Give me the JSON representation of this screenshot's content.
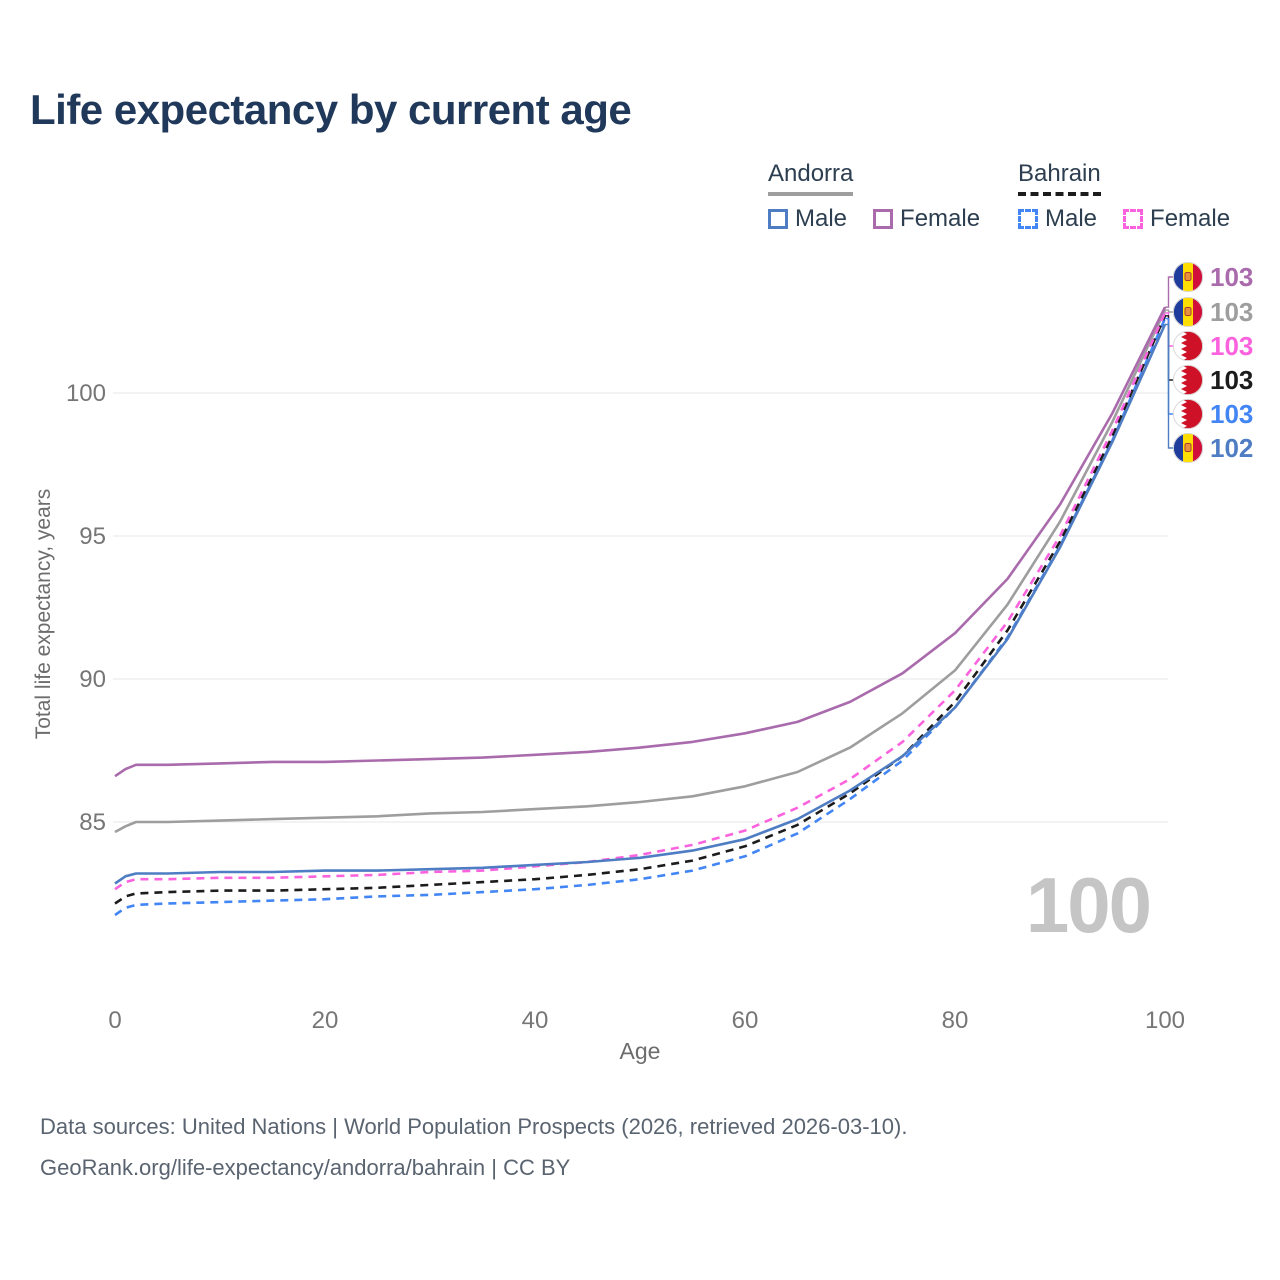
{
  "title": "Life expectancy by current age",
  "watermark": "100",
  "legend": {
    "groups": [
      {
        "name": "Andorra",
        "line": {
          "color": "#9e9e9e",
          "dash": "solid"
        },
        "items": [
          {
            "label": "Male",
            "color": "#4f7dc3",
            "dash": "solid"
          },
          {
            "label": "Female",
            "color": "#a96bac",
            "dash": "solid"
          }
        ]
      },
      {
        "name": "Bahrain",
        "line": {
          "color": "#1c1c1c",
          "dash": "dashed"
        },
        "items": [
          {
            "label": "Male",
            "color": "#4285f4",
            "dash": "dashed"
          },
          {
            "label": "Female",
            "color": "#fb63de",
            "dash": "dashed"
          }
        ]
      }
    ]
  },
  "footer": {
    "line1": "Data sources: United Nations | World Population Prospects (2026, retrieved 2026-03-10).",
    "line2": "GeoRank.org/life-expectancy/andorra/bahrain | CC BY"
  },
  "chart_data": {
    "type": "line",
    "title": "Life expectancy by current age",
    "xlabel": "Age",
    "ylabel": "Total life expectancy, years",
    "xlim": [
      0,
      100
    ],
    "ylim": [
      81.5,
      103.5
    ],
    "x_ticks": [
      0,
      20,
      40,
      60,
      80,
      100
    ],
    "y_ticks": [
      85,
      90,
      95,
      100
    ],
    "grid": "horizontal",
    "legend_position": "top-right",
    "series": [
      {
        "id": "andorra-female",
        "country": "Andorra",
        "sex": "Female",
        "color": "#a96bac",
        "dash": "solid",
        "flag": "ad",
        "end_label": "103",
        "points": [
          [
            0,
            86.6
          ],
          [
            1,
            86.85
          ],
          [
            2,
            87.0
          ],
          [
            5,
            87.0
          ],
          [
            10,
            87.05
          ],
          [
            15,
            87.1
          ],
          [
            20,
            87.1
          ],
          [
            25,
            87.15
          ],
          [
            30,
            87.2
          ],
          [
            35,
            87.25
          ],
          [
            40,
            87.35
          ],
          [
            45,
            87.45
          ],
          [
            50,
            87.6
          ],
          [
            55,
            87.8
          ],
          [
            60,
            88.1
          ],
          [
            65,
            88.5
          ],
          [
            70,
            89.2
          ],
          [
            75,
            90.2
          ],
          [
            80,
            91.6
          ],
          [
            85,
            93.5
          ],
          [
            90,
            96.1
          ],
          [
            95,
            99.3
          ],
          [
            100,
            103.0
          ]
        ]
      },
      {
        "id": "andorra-total",
        "country": "Andorra",
        "sex": "Both",
        "color": "#9e9e9e",
        "dash": "solid",
        "flag": "ad",
        "end_label": "103",
        "points": [
          [
            0,
            84.65
          ],
          [
            1,
            84.85
          ],
          [
            2,
            85.0
          ],
          [
            5,
            85.0
          ],
          [
            10,
            85.05
          ],
          [
            15,
            85.1
          ],
          [
            20,
            85.15
          ],
          [
            25,
            85.2
          ],
          [
            30,
            85.3
          ],
          [
            35,
            85.35
          ],
          [
            40,
            85.45
          ],
          [
            45,
            85.55
          ],
          [
            50,
            85.7
          ],
          [
            55,
            85.9
          ],
          [
            60,
            86.25
          ],
          [
            65,
            86.75
          ],
          [
            70,
            87.6
          ],
          [
            75,
            88.8
          ],
          [
            80,
            90.3
          ],
          [
            85,
            92.6
          ],
          [
            90,
            95.5
          ],
          [
            95,
            99.0
          ],
          [
            100,
            102.9
          ]
        ]
      },
      {
        "id": "bahrain-female",
        "country": "Bahrain",
        "sex": "Female",
        "color": "#fb63de",
        "dash": "dashed",
        "flag": "bh",
        "end_label": "103",
        "points": [
          [
            0,
            82.65
          ],
          [
            1,
            82.9
          ],
          [
            2,
            83.0
          ],
          [
            5,
            83.0
          ],
          [
            10,
            83.05
          ],
          [
            15,
            83.05
          ],
          [
            20,
            83.1
          ],
          [
            25,
            83.15
          ],
          [
            30,
            83.25
          ],
          [
            35,
            83.3
          ],
          [
            40,
            83.45
          ],
          [
            45,
            83.6
          ],
          [
            50,
            83.85
          ],
          [
            55,
            84.2
          ],
          [
            60,
            84.7
          ],
          [
            65,
            85.5
          ],
          [
            70,
            86.5
          ],
          [
            75,
            87.8
          ],
          [
            80,
            89.6
          ],
          [
            85,
            92.0
          ],
          [
            90,
            95.0
          ],
          [
            95,
            98.7
          ],
          [
            100,
            102.8
          ]
        ]
      },
      {
        "id": "bahrain-total",
        "country": "Bahrain",
        "sex": "Both",
        "color": "#1c1c1c",
        "dash": "dashed",
        "flag": "bh",
        "end_label": "103",
        "points": [
          [
            0,
            82.15
          ],
          [
            1,
            82.4
          ],
          [
            2,
            82.5
          ],
          [
            5,
            82.55
          ],
          [
            10,
            82.6
          ],
          [
            15,
            82.6
          ],
          [
            20,
            82.65
          ],
          [
            25,
            82.7
          ],
          [
            30,
            82.8
          ],
          [
            35,
            82.9
          ],
          [
            40,
            83.0
          ],
          [
            45,
            83.15
          ],
          [
            50,
            83.35
          ],
          [
            55,
            83.65
          ],
          [
            60,
            84.15
          ],
          [
            65,
            84.9
          ],
          [
            70,
            86.0
          ],
          [
            75,
            87.3
          ],
          [
            80,
            89.2
          ],
          [
            85,
            91.7
          ],
          [
            90,
            94.8
          ],
          [
            95,
            98.5
          ],
          [
            100,
            102.7
          ]
        ]
      },
      {
        "id": "bahrain-male",
        "country": "Bahrain",
        "sex": "Male",
        "color": "#4285f4",
        "dash": "dashed",
        "flag": "bh",
        "end_label": "103",
        "points": [
          [
            0,
            81.75
          ],
          [
            1,
            82.0
          ],
          [
            2,
            82.1
          ],
          [
            5,
            82.15
          ],
          [
            10,
            82.2
          ],
          [
            15,
            82.25
          ],
          [
            20,
            82.3
          ],
          [
            25,
            82.4
          ],
          [
            30,
            82.45
          ],
          [
            35,
            82.55
          ],
          [
            40,
            82.65
          ],
          [
            45,
            82.8
          ],
          [
            50,
            83.0
          ],
          [
            55,
            83.3
          ],
          [
            60,
            83.8
          ],
          [
            65,
            84.6
          ],
          [
            70,
            85.8
          ],
          [
            75,
            87.15
          ],
          [
            80,
            89.0
          ],
          [
            85,
            91.45
          ],
          [
            90,
            94.65
          ],
          [
            95,
            98.35
          ],
          [
            100,
            102.6
          ]
        ]
      },
      {
        "id": "andorra-male",
        "country": "Andorra",
        "sex": "Male",
        "color": "#4f7dc3",
        "dash": "solid",
        "flag": "ad",
        "end_label": "102",
        "points": [
          [
            0,
            82.85
          ],
          [
            1,
            83.1
          ],
          [
            2,
            83.2
          ],
          [
            5,
            83.2
          ],
          [
            10,
            83.25
          ],
          [
            15,
            83.25
          ],
          [
            20,
            83.3
          ],
          [
            25,
            83.3
          ],
          [
            30,
            83.35
          ],
          [
            35,
            83.4
          ],
          [
            40,
            83.5
          ],
          [
            45,
            83.6
          ],
          [
            50,
            83.75
          ],
          [
            55,
            84.0
          ],
          [
            60,
            84.4
          ],
          [
            65,
            85.1
          ],
          [
            70,
            86.1
          ],
          [
            75,
            87.3
          ],
          [
            80,
            89.0
          ],
          [
            85,
            91.4
          ],
          [
            90,
            94.6
          ],
          [
            95,
            98.3
          ],
          [
            100,
            102.4
          ]
        ]
      }
    ]
  }
}
